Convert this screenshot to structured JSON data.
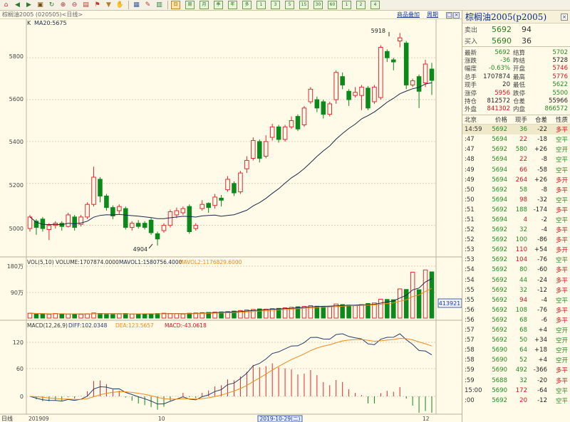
{
  "toolbar": {
    "tools": [
      "home-icon",
      "back-icon",
      "forward-icon",
      "window-icon",
      "refresh-icon",
      "zoom-in-icon",
      "zoom-out-icon",
      "bookmark-icon",
      "flag-icon",
      "filter-icon",
      "hand-icon",
      "grid-icon",
      "draw-icon",
      "indicator-icon"
    ],
    "periods": [
      "日",
      "周",
      "月",
      "季",
      "年",
      "多",
      "1",
      "3",
      "5",
      "15",
      "30",
      "60",
      "1",
      "2",
      "4"
    ],
    "active_period": 0
  },
  "title": {
    "left": "棕榈油2005 (020505)<日线>",
    "add_product": "商品叠加",
    "cycle": "周期"
  },
  "price_panel": {
    "legend_k": "K",
    "legend_ma": "MA20:5675",
    "annotation_high": "5918",
    "annotation_low": "4904",
    "y_ticks": [
      "5800",
      "5600",
      "5400",
      "5200",
      "5000"
    ]
  },
  "volume_panel": {
    "legend": "VOL(5,10) VOLUME:1707874.0000",
    "mavol1": "MAVOL1:1580756.4000",
    "mavol2": "MAVOL2:1176829.6000",
    "y_ticks": [
      "180万",
      "90万"
    ],
    "last_value": "413921"
  },
  "macd_panel": {
    "legend": "MACD(12,26,9)",
    "diff": "DIFF:102.0348",
    "dea": "DEA:123.5657",
    "macd": "MACD:-43.0618",
    "y_ticks": [
      "120",
      "60",
      "0"
    ]
  },
  "x_axis": {
    "label": "日线",
    "start": "201909",
    "month10": "10",
    "cursor_date": "2019-10-29(二)",
    "month12": "12"
  },
  "quote": {
    "name": "棕榈油2005(p2005)",
    "sell_label": "卖出",
    "sell_price": "5692",
    "sell_vol": "94",
    "buy_label": "买入",
    "buy_price": "5690",
    "buy_vol": "36",
    "stats": [
      {
        "k1": "最新",
        "v1": "5692",
        "c1": "green",
        "k2": "结算",
        "v2": "5702",
        "c2": "green"
      },
      {
        "k1": "涨跌",
        "v1": "-36",
        "c1": "green",
        "k2": "昨结",
        "v2": "5728",
        "c2": "black"
      },
      {
        "k1": "幅度",
        "v1": "-0.63%",
        "c1": "green",
        "k2": "开盘",
        "v2": "5746",
        "c2": "red"
      },
      {
        "k1": "总手",
        "v1": "1707874",
        "c1": "black",
        "k2": "最高",
        "v2": "5776",
        "c2": "red"
      },
      {
        "k1": "现手",
        "v1": "20",
        "c1": "black",
        "k2": "最低",
        "v2": "5622",
        "c2": "green"
      },
      {
        "k1": "涨停",
        "v1": "5956",
        "c1": "red",
        "k2": "跌停",
        "v2": "5500",
        "c2": "green"
      },
      {
        "k1": "持仓",
        "v1": "812572",
        "c1": "black",
        "k2": "仓差",
        "v2": "55966",
        "c2": "black"
      },
      {
        "k1": "外盘",
        "v1": "841302",
        "c1": "red",
        "k2": "内盘",
        "v2": "866572",
        "c2": "green"
      }
    ]
  },
  "ticks": {
    "headers": [
      "北京",
      "价格",
      "现手",
      "仓差",
      "性质"
    ],
    "rows": [
      {
        "t": "14:59",
        "p": "5692",
        "v": "36",
        "oi": "-22",
        "n": "多平",
        "vc": "green",
        "nc": "red"
      },
      {
        "t": ":47",
        "p": "5694",
        "v": "22",
        "oi": "-18",
        "n": "空平",
        "vc": "red",
        "nc": "green"
      },
      {
        "t": ":47",
        "p": "5692",
        "v": "580",
        "oi": "+26",
        "n": "空开",
        "vc": "green",
        "nc": "green"
      },
      {
        "t": ":48",
        "p": "5694",
        "v": "22",
        "oi": "-8",
        "n": "空平",
        "vc": "red",
        "nc": "green"
      },
      {
        "t": ":49",
        "p": "5694",
        "v": "66",
        "oi": "-58",
        "n": "空平",
        "vc": "red",
        "nc": "green"
      },
      {
        "t": ":49",
        "p": "5694",
        "v": "264",
        "oi": "+26",
        "n": "多开",
        "vc": "red",
        "nc": "red"
      },
      {
        "t": ":50",
        "p": "5692",
        "v": "58",
        "oi": "-8",
        "n": "多平",
        "vc": "green",
        "nc": "red"
      },
      {
        "t": ":50",
        "p": "5694",
        "v": "98",
        "oi": "-32",
        "n": "空平",
        "vc": "red",
        "nc": "green"
      },
      {
        "t": ":51",
        "p": "5692",
        "v": "188",
        "oi": "-174",
        "n": "多平",
        "vc": "green",
        "nc": "red"
      },
      {
        "t": ":51",
        "p": "5694",
        "v": "4",
        "oi": "-2",
        "n": "空平",
        "vc": "red",
        "nc": "green"
      },
      {
        "t": ":52",
        "p": "5692",
        "v": "32",
        "oi": "-4",
        "n": "多平",
        "vc": "green",
        "nc": "red"
      },
      {
        "t": ":52",
        "p": "5692",
        "v": "100",
        "oi": "-86",
        "n": "多平",
        "vc": "green",
        "nc": "red"
      },
      {
        "t": ":53",
        "p": "5692",
        "v": "110",
        "oi": "+54",
        "n": "多开",
        "vc": "red",
        "nc": "red"
      },
      {
        "t": ":53",
        "p": "5692",
        "v": "104",
        "oi": "-76",
        "n": "空平",
        "vc": "red",
        "nc": "green"
      },
      {
        "t": ":54",
        "p": "5692",
        "v": "80",
        "oi": "-60",
        "n": "多平",
        "vc": "green",
        "nc": "red"
      },
      {
        "t": ":54",
        "p": "5692",
        "v": "44",
        "oi": "-24",
        "n": "多平",
        "vc": "green",
        "nc": "red"
      },
      {
        "t": ":55",
        "p": "5692",
        "v": "32",
        "oi": "-12",
        "n": "多平",
        "vc": "green",
        "nc": "red"
      },
      {
        "t": ":55",
        "p": "5692",
        "v": "94",
        "oi": "-4",
        "n": "空平",
        "vc": "red",
        "nc": "green"
      },
      {
        "t": ":56",
        "p": "5692",
        "v": "108",
        "oi": "-76",
        "n": "多平",
        "vc": "green",
        "nc": "red"
      },
      {
        "t": ":56",
        "p": "5692",
        "v": "68",
        "oi": "-6",
        "n": "多平",
        "vc": "green",
        "nc": "red"
      },
      {
        "t": ":57",
        "p": "5692",
        "v": "68",
        "oi": "+4",
        "n": "空开",
        "vc": "green",
        "nc": "green"
      },
      {
        "t": ":57",
        "p": "5692",
        "v": "50",
        "oi": "+34",
        "n": "空开",
        "vc": "green",
        "nc": "green"
      },
      {
        "t": ":58",
        "p": "5690",
        "v": "64",
        "oi": "+18",
        "n": "空开",
        "vc": "green",
        "nc": "green"
      },
      {
        "t": ":58",
        "p": "5690",
        "v": "52",
        "oi": "+4",
        "n": "空开",
        "vc": "green",
        "nc": "green"
      },
      {
        "t": ":59",
        "p": "5690",
        "v": "492",
        "oi": "-366",
        "n": "多平",
        "vc": "green",
        "nc": "red"
      },
      {
        "t": ":59",
        "p": "5688",
        "v": "32",
        "oi": "-20",
        "n": "多平",
        "vc": "green",
        "nc": "red"
      },
      {
        "t": "15:00",
        "p": "5690",
        "v": "172",
        "oi": "-64",
        "n": "空平",
        "vc": "red",
        "nc": "green"
      },
      {
        "t": ":00",
        "p": "5692",
        "v": "20",
        "oi": "-12",
        "n": "空平",
        "vc": "red",
        "nc": "green"
      }
    ]
  },
  "colors": {
    "up": "#e8262e",
    "down": "#0a8a1a",
    "ma": "#1c2a4a",
    "mavol2": "#ee8a1c",
    "dea": "#ee8a1c",
    "diff": "#233c6a"
  },
  "chart_data": {
    "type": "candlestick",
    "title": "棕榈油2005 (020505)<日线>",
    "ylim": [
      4880,
      5950
    ],
    "candles": [
      {
        "o": 4985,
        "c": 5040,
        "h": 5050,
        "l": 4970
      },
      {
        "o": 5020,
        "c": 4990,
        "h": 5030,
        "l": 4955
      },
      {
        "o": 5030,
        "c": 4985,
        "h": 5040,
        "l": 4970
      },
      {
        "o": 4980,
        "c": 5000,
        "h": 5010,
        "l": 4930
      },
      {
        "o": 5000,
        "c": 5010,
        "h": 5020,
        "l": 4985
      },
      {
        "o": 5010,
        "c": 4995,
        "h": 5020,
        "l": 4975
      },
      {
        "o": 4995,
        "c": 5050,
        "h": 5060,
        "l": 4990
      },
      {
        "o": 5040,
        "c": 4990,
        "h": 5050,
        "l": 4975
      },
      {
        "o": 5005,
        "c": 5040,
        "h": 5050,
        "l": 4995
      },
      {
        "o": 5040,
        "c": 5100,
        "h": 5110,
        "l": 5030
      },
      {
        "o": 5100,
        "c": 5230,
        "h": 5280,
        "l": 5090
      },
      {
        "o": 5220,
        "c": 5140,
        "h": 5230,
        "l": 5110
      },
      {
        "o": 5140,
        "c": 5085,
        "h": 5150,
        "l": 5070
      },
      {
        "o": 5085,
        "c": 5045,
        "h": 5095,
        "l": 5030
      },
      {
        "o": 5070,
        "c": 5090,
        "h": 5100,
        "l": 5055
      },
      {
        "o": 5080,
        "c": 4990,
        "h": 5090,
        "l": 4980
      },
      {
        "o": 4990,
        "c": 5010,
        "h": 5020,
        "l": 4975
      },
      {
        "o": 5010,
        "c": 4995,
        "h": 5025,
        "l": 4985
      },
      {
        "o": 5010,
        "c": 4990,
        "h": 5020,
        "l": 4980
      },
      {
        "o": 5025,
        "c": 4965,
        "h": 5035,
        "l": 4955
      },
      {
        "o": 4960,
        "c": 4935,
        "h": 4970,
        "l": 4904
      },
      {
        "o": 4975,
        "c": 5000,
        "h": 5010,
        "l": 4965
      },
      {
        "o": 5000,
        "c": 5065,
        "h": 5075,
        "l": 4990
      },
      {
        "o": 5050,
        "c": 5070,
        "h": 5085,
        "l": 5035
      },
      {
        "o": 5060,
        "c": 5080,
        "h": 5090,
        "l": 5050
      },
      {
        "o": 5090,
        "c": 4970,
        "h": 5100,
        "l": 4960
      },
      {
        "o": 4985,
        "c": 5000,
        "h": 5010,
        "l": 4975
      },
      {
        "o": 5080,
        "c": 5100,
        "h": 5120,
        "l": 5070
      },
      {
        "o": 5105,
        "c": 5085,
        "h": 5110,
        "l": 5060
      },
      {
        "o": 5095,
        "c": 5135,
        "h": 5150,
        "l": 5080
      },
      {
        "o": 5130,
        "c": 5120,
        "h": 5145,
        "l": 5090
      },
      {
        "o": 5170,
        "c": 5220,
        "h": 5235,
        "l": 5160
      },
      {
        "o": 5200,
        "c": 5155,
        "h": 5210,
        "l": 5140
      },
      {
        "o": 5160,
        "c": 5250,
        "h": 5260,
        "l": 5150
      },
      {
        "o": 5270,
        "c": 5310,
        "h": 5330,
        "l": 5250
      },
      {
        "o": 5320,
        "c": 5405,
        "h": 5420,
        "l": 5310
      },
      {
        "o": 5400,
        "c": 5320,
        "h": 5410,
        "l": 5300
      },
      {
        "o": 5330,
        "c": 5400,
        "h": 5430,
        "l": 5320
      },
      {
        "o": 5420,
        "c": 5470,
        "h": 5485,
        "l": 5405
      },
      {
        "o": 5470,
        "c": 5410,
        "h": 5480,
        "l": 5395
      },
      {
        "o": 5410,
        "c": 5470,
        "h": 5480,
        "l": 5400
      },
      {
        "o": 5470,
        "c": 5500,
        "h": 5520,
        "l": 5460
      },
      {
        "o": 5520,
        "c": 5460,
        "h": 5530,
        "l": 5450
      },
      {
        "o": 5480,
        "c": 5560,
        "h": 5570,
        "l": 5470
      },
      {
        "o": 5590,
        "c": 5650,
        "h": 5660,
        "l": 5580
      },
      {
        "o": 5600,
        "c": 5560,
        "h": 5615,
        "l": 5540
      },
      {
        "o": 5590,
        "c": 5530,
        "h": 5600,
        "l": 5510
      },
      {
        "o": 5530,
        "c": 5580,
        "h": 5590,
        "l": 5520
      },
      {
        "o": 5600,
        "c": 5730,
        "h": 5740,
        "l": 5580
      },
      {
        "o": 5710,
        "c": 5670,
        "h": 5730,
        "l": 5650
      },
      {
        "o": 5640,
        "c": 5600,
        "h": 5650,
        "l": 5570
      },
      {
        "o": 5620,
        "c": 5635,
        "h": 5660,
        "l": 5610
      },
      {
        "o": 5620,
        "c": 5660,
        "h": 5670,
        "l": 5550
      },
      {
        "o": 5655,
        "c": 5560,
        "h": 5665,
        "l": 5550
      },
      {
        "o": 5590,
        "c": 5660,
        "h": 5670,
        "l": 5580
      },
      {
        "o": 5610,
        "c": 5850,
        "h": 5860,
        "l": 5600
      },
      {
        "o": 5830,
        "c": 5800,
        "h": 5840,
        "l": 5780
      },
      {
        "o": 5790,
        "c": 5780,
        "h": 5800,
        "l": 5740
      },
      {
        "o": 5880,
        "c": 5895,
        "h": 5918,
        "l": 5850
      },
      {
        "o": 5870,
        "c": 5670,
        "h": 5880,
        "l": 5650
      },
      {
        "o": 5670,
        "c": 5690,
        "h": 5700,
        "l": 5660
      },
      {
        "o": 5710,
        "c": 5640,
        "h": 5720,
        "l": 5560
      },
      {
        "o": 5680,
        "c": 5770,
        "h": 5790,
        "l": 5660
      },
      {
        "o": 5746,
        "c": 5692,
        "h": 5776,
        "l": 5622
      }
    ],
    "volume": {
      "ylim": [
        0,
        2000000
      ],
      "values": [
        180000,
        160000,
        150000,
        140000,
        170000,
        160000,
        150000,
        150000,
        140000,
        160000,
        190000,
        170000,
        160000,
        150000,
        150000,
        170000,
        150000,
        150000,
        150000,
        160000,
        170000,
        180000,
        170000,
        160000,
        150000,
        180000,
        190000,
        200000,
        210000,
        220000,
        230000,
        240000,
        260000,
        280000,
        300000,
        320000,
        340000,
        330000,
        350000,
        360000,
        380000,
        400000,
        420000,
        430000,
        460000,
        440000,
        430000,
        440000,
        520000,
        500000,
        480000,
        470000,
        500000,
        540000,
        560000,
        700000,
        690000,
        680000,
        1080000,
        1060000,
        1700000,
        1050000,
        1780000,
        1710000
      ]
    },
    "macd": {
      "ylim": [
        -80,
        180
      ]
    }
  }
}
